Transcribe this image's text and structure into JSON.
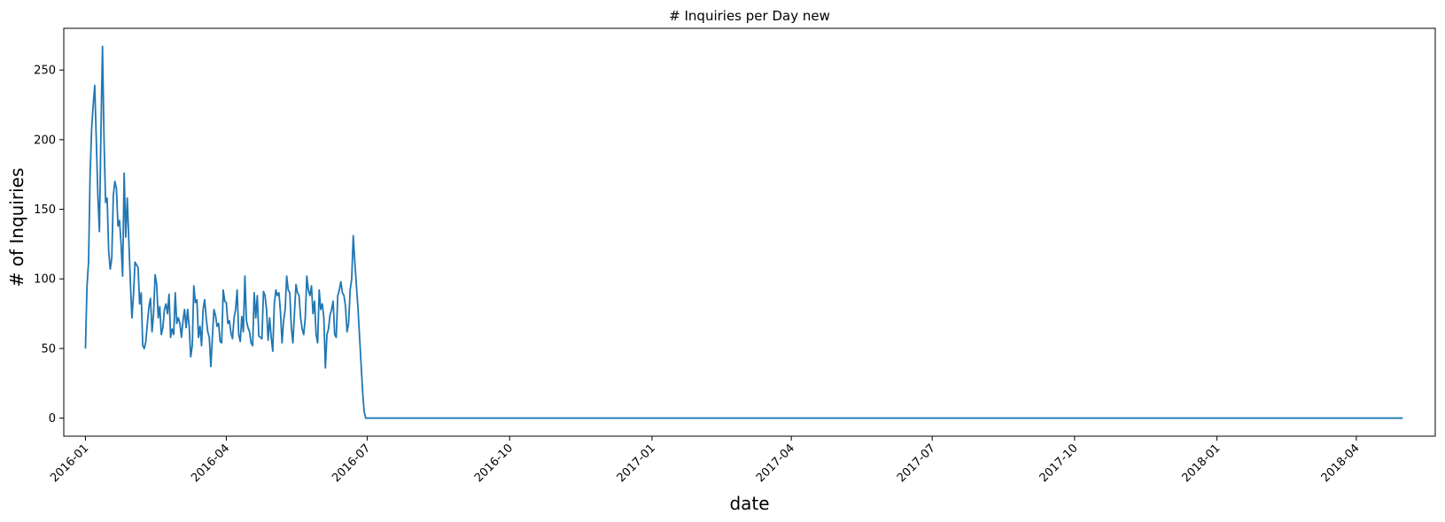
{
  "chart_data": {
    "type": "line",
    "title": "# Inquiries per Day new",
    "xlabel": "date",
    "ylabel": "# of Inquiries",
    "x_ticks": [
      "2016-01",
      "2016-04",
      "2016-07",
      "2016-10",
      "2017-01",
      "2017-04",
      "2017-07",
      "2017-10",
      "2018-01",
      "2018-04"
    ],
    "y_ticks": [
      "0",
      "50",
      "100",
      "150",
      "200",
      "250"
    ],
    "ylim": [
      -13,
      280
    ],
    "xlim": [
      "2015-12-18",
      "2018-05-22"
    ],
    "grid": false,
    "series": [
      {
        "color": "#1f77b4",
        "points": [
          [
            "2016-01-01",
            50
          ],
          [
            "2016-01-02",
            95
          ],
          [
            "2016-01-03",
            112
          ],
          [
            "2016-01-04",
            175
          ],
          [
            "2016-01-05",
            208
          ],
          [
            "2016-01-06",
            225
          ],
          [
            "2016-01-07",
            239
          ],
          [
            "2016-01-08",
            200
          ],
          [
            "2016-01-09",
            160
          ],
          [
            "2016-01-10",
            134
          ],
          [
            "2016-01-11",
            205
          ],
          [
            "2016-01-12",
            267
          ],
          [
            "2016-01-13",
            200
          ],
          [
            "2016-01-14",
            155
          ],
          [
            "2016-01-15",
            158
          ],
          [
            "2016-01-16",
            120
          ],
          [
            "2016-01-17",
            107
          ],
          [
            "2016-01-18",
            115
          ],
          [
            "2016-01-19",
            160
          ],
          [
            "2016-01-20",
            170
          ],
          [
            "2016-01-21",
            165
          ],
          [
            "2016-01-22",
            138
          ],
          [
            "2016-01-23",
            142
          ],
          [
            "2016-01-24",
            125
          ],
          [
            "2016-01-25",
            102
          ],
          [
            "2016-01-26",
            176
          ],
          [
            "2016-01-27",
            130
          ],
          [
            "2016-01-28",
            158
          ],
          [
            "2016-01-29",
            128
          ],
          [
            "2016-01-30",
            98
          ],
          [
            "2016-01-31",
            72
          ],
          [
            "2016-02-01",
            88
          ],
          [
            "2016-02-02",
            112
          ],
          [
            "2016-02-03",
            110
          ],
          [
            "2016-02-04",
            108
          ],
          [
            "2016-02-05",
            82
          ],
          [
            "2016-02-06",
            90
          ],
          [
            "2016-02-07",
            52
          ],
          [
            "2016-02-08",
            50
          ],
          [
            "2016-02-09",
            55
          ],
          [
            "2016-02-10",
            68
          ],
          [
            "2016-02-11",
            80
          ],
          [
            "2016-02-12",
            86
          ],
          [
            "2016-02-13",
            62
          ],
          [
            "2016-02-14",
            75
          ],
          [
            "2016-02-15",
            103
          ],
          [
            "2016-02-16",
            96
          ],
          [
            "2016-02-17",
            72
          ],
          [
            "2016-02-18",
            80
          ],
          [
            "2016-02-19",
            60
          ],
          [
            "2016-02-20",
            65
          ],
          [
            "2016-02-21",
            78
          ],
          [
            "2016-02-22",
            82
          ],
          [
            "2016-02-23",
            75
          ],
          [
            "2016-02-24",
            89
          ],
          [
            "2016-02-25",
            58
          ],
          [
            "2016-02-26",
            64
          ],
          [
            "2016-02-27",
            60
          ],
          [
            "2016-02-28",
            90
          ],
          [
            "2016-02-29",
            68
          ],
          [
            "2016-03-01",
            72
          ],
          [
            "2016-03-02",
            68
          ],
          [
            "2016-03-03",
            58
          ],
          [
            "2016-03-04",
            70
          ],
          [
            "2016-03-05",
            78
          ],
          [
            "2016-03-06",
            65
          ],
          [
            "2016-03-07",
            78
          ],
          [
            "2016-03-08",
            66
          ],
          [
            "2016-03-09",
            44
          ],
          [
            "2016-03-10",
            52
          ],
          [
            "2016-03-11",
            95
          ],
          [
            "2016-03-12",
            83
          ],
          [
            "2016-03-13",
            85
          ],
          [
            "2016-03-14",
            58
          ],
          [
            "2016-03-15",
            66
          ],
          [
            "2016-03-16",
            52
          ],
          [
            "2016-03-17",
            78
          ],
          [
            "2016-03-18",
            85
          ],
          [
            "2016-03-19",
            72
          ],
          [
            "2016-03-20",
            62
          ],
          [
            "2016-03-21",
            58
          ],
          [
            "2016-03-22",
            37
          ],
          [
            "2016-03-23",
            58
          ],
          [
            "2016-03-24",
            78
          ],
          [
            "2016-03-25",
            74
          ],
          [
            "2016-03-26",
            66
          ],
          [
            "2016-03-27",
            68
          ],
          [
            "2016-03-28",
            55
          ],
          [
            "2016-03-29",
            54
          ],
          [
            "2016-03-30",
            92
          ],
          [
            "2016-03-31",
            84
          ],
          [
            "2016-04-01",
            83
          ],
          [
            "2016-04-02",
            68
          ],
          [
            "2016-04-03",
            70
          ],
          [
            "2016-04-04",
            61
          ],
          [
            "2016-04-05",
            57
          ],
          [
            "2016-04-06",
            72
          ],
          [
            "2016-04-07",
            78
          ],
          [
            "2016-04-08",
            92
          ],
          [
            "2016-04-09",
            60
          ],
          [
            "2016-04-10",
            55
          ],
          [
            "2016-04-11",
            73
          ],
          [
            "2016-04-12",
            62
          ],
          [
            "2016-04-13",
            102
          ],
          [
            "2016-04-14",
            70
          ],
          [
            "2016-04-15",
            65
          ],
          [
            "2016-04-16",
            62
          ],
          [
            "2016-04-17",
            54
          ],
          [
            "2016-04-18",
            52
          ],
          [
            "2016-04-19",
            90
          ],
          [
            "2016-04-20",
            72
          ],
          [
            "2016-04-21",
            88
          ],
          [
            "2016-04-22",
            59
          ],
          [
            "2016-04-23",
            58
          ],
          [
            "2016-04-24",
            57
          ],
          [
            "2016-04-25",
            91
          ],
          [
            "2016-04-26",
            88
          ],
          [
            "2016-04-27",
            78
          ],
          [
            "2016-04-28",
            56
          ],
          [
            "2016-04-29",
            72
          ],
          [
            "2016-04-30",
            58
          ],
          [
            "2016-05-01",
            48
          ],
          [
            "2016-05-02",
            82
          ],
          [
            "2016-05-03",
            92
          ],
          [
            "2016-05-04",
            88
          ],
          [
            "2016-05-05",
            90
          ],
          [
            "2016-05-06",
            76
          ],
          [
            "2016-05-07",
            54
          ],
          [
            "2016-05-08",
            70
          ],
          [
            "2016-05-09",
            78
          ],
          [
            "2016-05-10",
            102
          ],
          [
            "2016-05-11",
            92
          ],
          [
            "2016-05-12",
            90
          ],
          [
            "2016-05-13",
            65
          ],
          [
            "2016-05-14",
            54
          ],
          [
            "2016-05-15",
            75
          ],
          [
            "2016-05-16",
            96
          ],
          [
            "2016-05-17",
            90
          ],
          [
            "2016-05-18",
            88
          ],
          [
            "2016-05-19",
            72
          ],
          [
            "2016-05-20",
            64
          ],
          [
            "2016-05-21",
            60
          ],
          [
            "2016-05-22",
            72
          ],
          [
            "2016-05-23",
            102
          ],
          [
            "2016-05-24",
            92
          ],
          [
            "2016-05-25",
            88
          ],
          [
            "2016-05-26",
            95
          ],
          [
            "2016-05-27",
            75
          ],
          [
            "2016-05-28",
            84
          ],
          [
            "2016-05-29",
            60
          ],
          [
            "2016-05-30",
            54
          ],
          [
            "2016-05-31",
            92
          ],
          [
            "2016-06-01",
            78
          ],
          [
            "2016-06-02",
            82
          ],
          [
            "2016-06-03",
            72
          ],
          [
            "2016-06-04",
            36
          ],
          [
            "2016-06-05",
            60
          ],
          [
            "2016-06-06",
            64
          ],
          [
            "2016-06-07",
            74
          ],
          [
            "2016-06-08",
            78
          ],
          [
            "2016-06-09",
            84
          ],
          [
            "2016-06-10",
            60
          ],
          [
            "2016-06-11",
            58
          ],
          [
            "2016-06-12",
            88
          ],
          [
            "2016-06-13",
            92
          ],
          [
            "2016-06-14",
            98
          ],
          [
            "2016-06-15",
            90
          ],
          [
            "2016-06-16",
            88
          ],
          [
            "2016-06-17",
            80
          ],
          [
            "2016-06-18",
            62
          ],
          [
            "2016-06-19",
            68
          ],
          [
            "2016-06-20",
            92
          ],
          [
            "2016-06-21",
            100
          ],
          [
            "2016-06-22",
            131
          ],
          [
            "2016-06-23",
            112
          ],
          [
            "2016-06-24",
            96
          ],
          [
            "2016-06-25",
            80
          ],
          [
            "2016-06-26",
            60
          ],
          [
            "2016-06-27",
            40
          ],
          [
            "2016-06-28",
            20
          ],
          [
            "2016-06-29",
            5
          ],
          [
            "2016-06-30",
            0
          ],
          [
            "2016-07-01",
            0
          ],
          [
            "2018-05-01",
            0
          ]
        ]
      }
    ]
  }
}
